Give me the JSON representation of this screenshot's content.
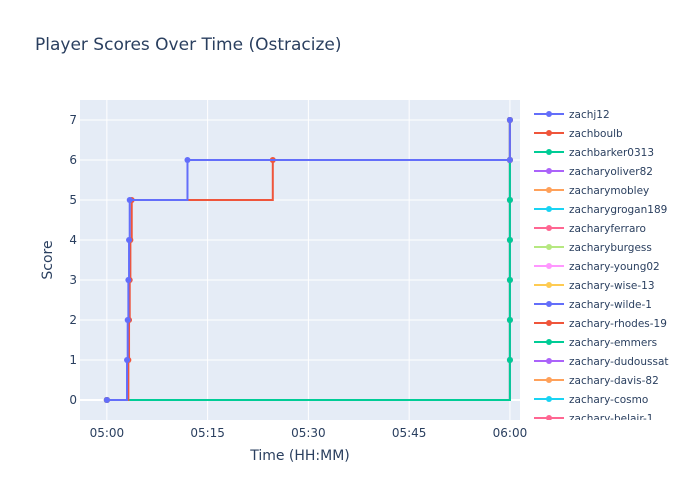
{
  "chart_data": {
    "type": "line",
    "line_shape": "step",
    "title": "Player Scores Over Time (Ostracize)",
    "xlabel": "Time (HH:MM)",
    "ylabel": "Score",
    "x_unit": "minutes past 05:00",
    "xlim": [
      -4,
      61.5
    ],
    "ylim": [
      -0.5,
      7.5
    ],
    "x_ticks": [
      0,
      15,
      30,
      45,
      60
    ],
    "x_tick_labels": [
      "05:00",
      "05:15",
      "05:30",
      "05:45",
      "06:00"
    ],
    "y_ticks": [
      0,
      1,
      2,
      3,
      4,
      5,
      6,
      7
    ],
    "y_tick_labels": [
      "0",
      "1",
      "2",
      "3",
      "4",
      "5",
      "6",
      "7"
    ],
    "grid": true,
    "legend_position": "right",
    "plot_background": "#e5ecf6",
    "series": [
      {
        "name": "zachj12",
        "color": "#636efa",
        "x": [
          0,
          3.0,
          3.1,
          3.2,
          3.3,
          3.4,
          12.0,
          60.0,
          60.0
        ],
        "y": [
          0,
          1,
          2,
          3,
          4,
          5,
          6,
          6,
          7
        ]
      },
      {
        "name": "zachboulb",
        "color": "#ef553b",
        "x": [
          0,
          3.2,
          3.3,
          3.4,
          3.5,
          3.7,
          24.7,
          60.0,
          60.0
        ],
        "y": [
          0,
          1,
          2,
          3,
          4,
          5,
          6,
          6,
          7
        ]
      },
      {
        "name": "zachbarker0313",
        "color": "#00cc96",
        "x": [
          0,
          60,
          60,
          60,
          60,
          60,
          60,
          60
        ],
        "y": [
          0,
          1,
          2,
          3,
          4,
          5,
          6,
          7
        ]
      },
      {
        "name": "zacharyoliver82",
        "color": "#ab63fa",
        "x": [
          0,
          60,
          60,
          60,
          60,
          60,
          60,
          60
        ],
        "y": [
          0,
          1,
          2,
          3,
          4,
          5,
          6,
          7
        ]
      },
      {
        "name": "zacharymobley",
        "color": "#ffa15a",
        "x": [
          0,
          60,
          60,
          60,
          60,
          60,
          60,
          60
        ],
        "y": [
          0,
          1,
          2,
          3,
          4,
          5,
          6,
          7
        ]
      },
      {
        "name": "zacharygrogan189",
        "color": "#19d3f3",
        "x": [
          0,
          60,
          60,
          60,
          60,
          60,
          60,
          60
        ],
        "y": [
          0,
          1,
          2,
          3,
          4,
          5,
          6,
          7
        ]
      },
      {
        "name": "zacharyferraro",
        "color": "#ff6692",
        "x": [
          0,
          60,
          60,
          60,
          60,
          60,
          60,
          60
        ],
        "y": [
          0,
          1,
          2,
          3,
          4,
          5,
          6,
          7
        ]
      },
      {
        "name": "zacharyburgess",
        "color": "#b6e880",
        "x": [
          0,
          60,
          60,
          60,
          60,
          60,
          60,
          60
        ],
        "y": [
          0,
          1,
          2,
          3,
          4,
          5,
          6,
          7
        ]
      },
      {
        "name": "zachary-young02",
        "color": "#ff97ff",
        "x": [
          0
        ],
        "y": [
          0
        ]
      },
      {
        "name": "zachary-wise-13",
        "color": "#fecb52",
        "x": [
          0
        ],
        "y": [
          0
        ]
      },
      {
        "name": "zachary-wilde-1",
        "color": "#636efa",
        "x": [
          0
        ],
        "y": [
          0
        ]
      },
      {
        "name": "zachary-rhodes-19",
        "color": "#ef553b",
        "x": [
          0
        ],
        "y": [
          0
        ]
      },
      {
        "name": "zachary-emmers",
        "color": "#00cc96",
        "x": [
          0
        ],
        "y": [
          0
        ]
      },
      {
        "name": "zachary-dudoussat",
        "color": "#ab63fa",
        "x": [
          0
        ],
        "y": [
          0
        ]
      },
      {
        "name": "zachary-davis-82",
        "color": "#ffa15a",
        "x": [
          0
        ],
        "y": [
          0
        ]
      },
      {
        "name": "zachary-cosmo",
        "color": "#19d3f3",
        "x": [
          0
        ],
        "y": [
          0
        ]
      },
      {
        "name": "zachary-belair-1",
        "color": "#ff6692",
        "x": [
          0
        ],
        "y": [
          0
        ]
      }
    ]
  }
}
